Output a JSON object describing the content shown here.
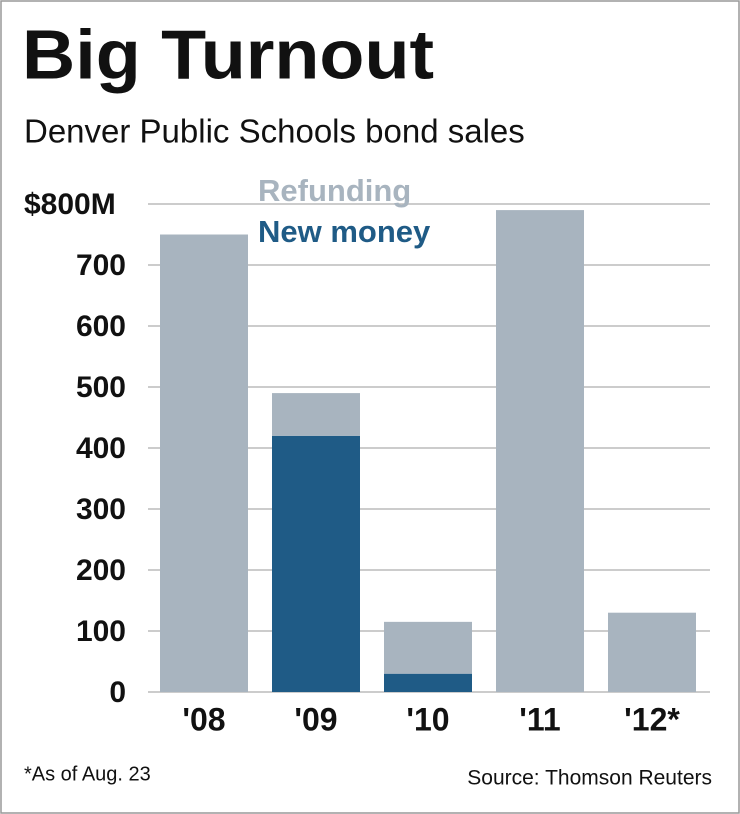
{
  "chart_data": {
    "type": "stacked_bar",
    "title": "Big Turnout",
    "subtitle": "Denver Public Schools bond sales",
    "categories": [
      "'08",
      "'09",
      "'10",
      "'11",
      "'12*"
    ],
    "series": [
      {
        "name": "New money",
        "color": "#1f5b86",
        "values": [
          0,
          420,
          30,
          0,
          0
        ]
      },
      {
        "name": "Refunding",
        "color": "#a8b4bf",
        "values": [
          750,
          70,
          85,
          790,
          130
        ]
      }
    ],
    "ylim": [
      0,
      800
    ],
    "yticks": [
      0,
      100,
      200,
      300,
      400,
      500,
      600,
      700,
      {
        "value": 800,
        "label": "$800M"
      }
    ],
    "grid": true,
    "footnote": "*As of Aug. 23",
    "source": "Source: Thomson Reuters"
  }
}
